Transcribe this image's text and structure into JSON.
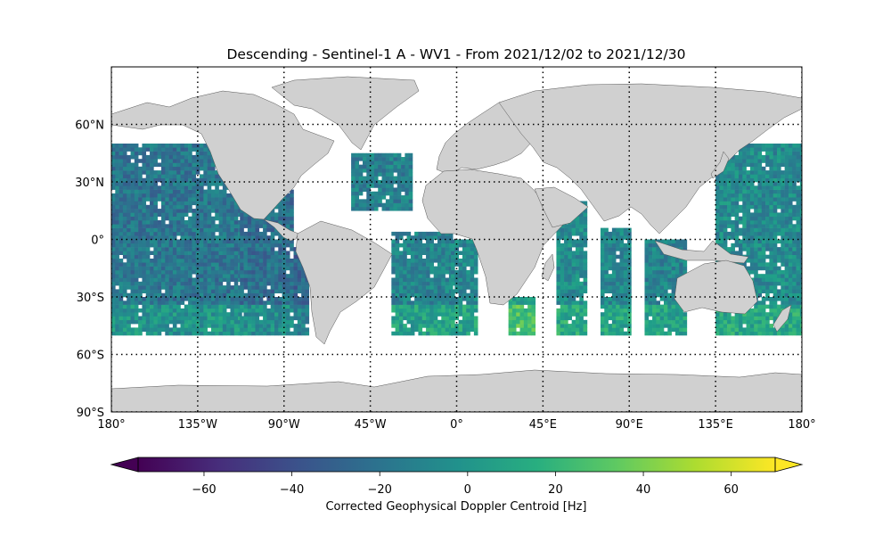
{
  "chart_data": {
    "type": "heatmap",
    "title": "Descending - Sentinel-1 A - WV1 - From 2021/12/02 to 2021/12/30",
    "xticks": [
      {
        "value": -180,
        "label": "180°"
      },
      {
        "value": -135,
        "label": "135°W"
      },
      {
        "value": -90,
        "label": "90°W"
      },
      {
        "value": -45,
        "label": "45°W"
      },
      {
        "value": 0,
        "label": "0°"
      },
      {
        "value": 45,
        "label": "45°E"
      },
      {
        "value": 90,
        "label": "90°E"
      },
      {
        "value": 135,
        "label": "135°E"
      },
      {
        "value": 180,
        "label": "180°"
      }
    ],
    "yticks": [
      {
        "value": 60,
        "label": "60°N"
      },
      {
        "value": 30,
        "label": "30°N"
      },
      {
        "value": 0,
        "label": "0°"
      },
      {
        "value": -30,
        "label": "30°S"
      },
      {
        "value": -60,
        "label": "60°S"
      },
      {
        "value": -90,
        "label": "90°S"
      }
    ],
    "xlim": [
      -180,
      180
    ],
    "ylim": [
      -90,
      90
    ],
    "grid": true,
    "colormap": "viridis",
    "colorbar": {
      "label": "Corrected Geophysical Doppler Centroid [Hz]",
      "range": [
        -75,
        70
      ],
      "ticks": [
        {
          "value": -60,
          "label": "−60"
        },
        {
          "value": -40,
          "label": "−40"
        },
        {
          "value": -20,
          "label": "−20"
        },
        {
          "value": 0,
          "label": "0"
        },
        {
          "value": 20,
          "label": "20"
        },
        {
          "value": 40,
          "label": "40"
        },
        {
          "value": 60,
          "label": "60"
        }
      ],
      "extend": "both"
    },
    "land_color": "#d0d0d0",
    "swaths": [
      {
        "lon": [
          -180,
          -113
        ],
        "lat": [
          -50,
          50
        ],
        "mean": -18
      },
      {
        "lon": [
          -113,
          -85
        ],
        "lat": [
          -50,
          25
        ],
        "mean": -22
      },
      {
        "lon": [
          -85,
          -78
        ],
        "lat": [
          -50,
          -5
        ],
        "mean": -28
      },
      {
        "lon": [
          -55,
          -23
        ],
        "lat": [
          15,
          45
        ],
        "mean": -12
      },
      {
        "lon": [
          -34,
          -3
        ],
        "lat": [
          -50,
          3
        ],
        "mean": -10
      },
      {
        "lon": [
          -3,
          10
        ],
        "lat": [
          -50,
          0
        ],
        "mean": -8
      },
      {
        "lon": [
          27,
          40
        ],
        "lat": [
          -50,
          -30
        ],
        "mean": 10
      },
      {
        "lon": [
          52,
          68
        ],
        "lat": [
          -50,
          20
        ],
        "mean": -5
      },
      {
        "lon": [
          75,
          90
        ],
        "lat": [
          -50,
          5
        ],
        "mean": -8
      },
      {
        "lon": [
          98,
          120
        ],
        "lat": [
          -50,
          0
        ],
        "mean": -10
      },
      {
        "lon": [
          135,
          180
        ],
        "lat": [
          -50,
          50
        ],
        "mean": -6
      }
    ]
  }
}
